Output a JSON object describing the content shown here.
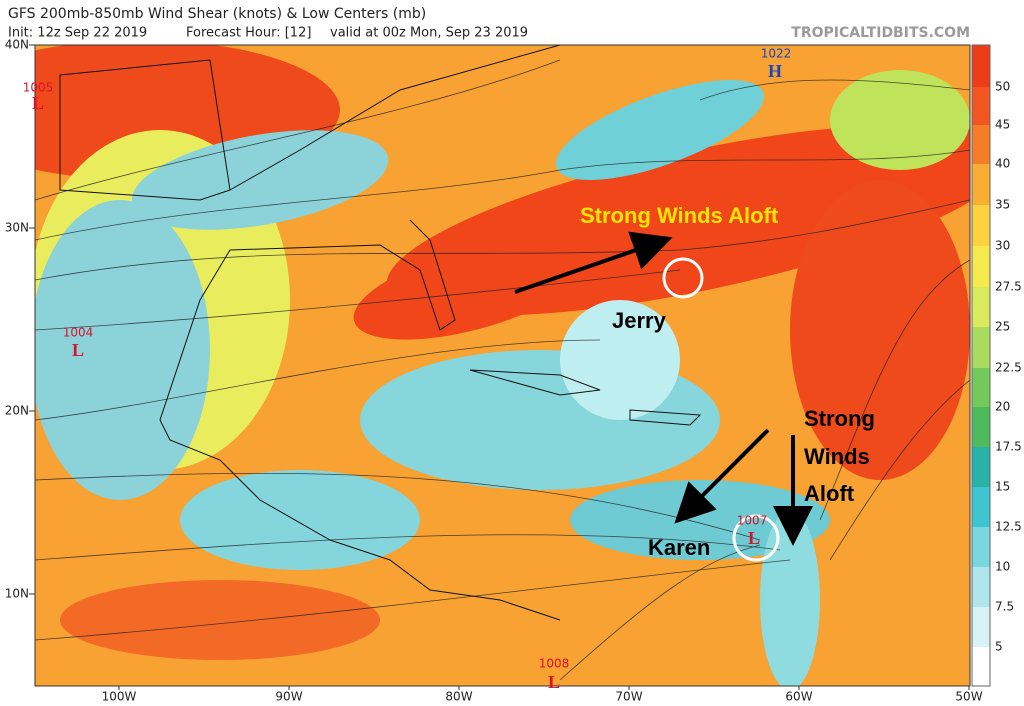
{
  "header": {
    "title": "GFS 200mb-850mb Wind Shear (knots) & Low Centers (mb)",
    "init": "Init: 12z Sep 22 2019",
    "forecast": "Forecast Hour: [12]",
    "valid": "valid at 00z Mon, Sep 23 2019",
    "site": "TROPICALTIDBITS.COM"
  },
  "map": {
    "lat_labels": [
      "40N",
      "30N",
      "20N",
      "10N"
    ],
    "lon_labels": [
      "100W",
      "90W",
      "80W",
      "70W",
      "60W",
      "50W"
    ],
    "colorbar": [
      "50",
      "45",
      "40",
      "35",
      "30",
      "27.5",
      "25",
      "22.5",
      "20",
      "17.5",
      "15",
      "12.5",
      "10",
      "7.5",
      "5"
    ],
    "centers": [
      {
        "pressure": "1005",
        "symbol": "L"
      },
      {
        "pressure": "1004",
        "symbol": "L"
      },
      {
        "pressure": "1022",
        "symbol": "H"
      },
      {
        "pressure": "1008",
        "symbol": "L"
      },
      {
        "pressure": "1007",
        "symbol": "L"
      }
    ],
    "annotations": {
      "jet": "Strong Winds Aloft",
      "jerry": "Jerry",
      "karen": "Karen",
      "east": [
        "Strong",
        "Winds",
        "Aloft"
      ]
    }
  }
}
